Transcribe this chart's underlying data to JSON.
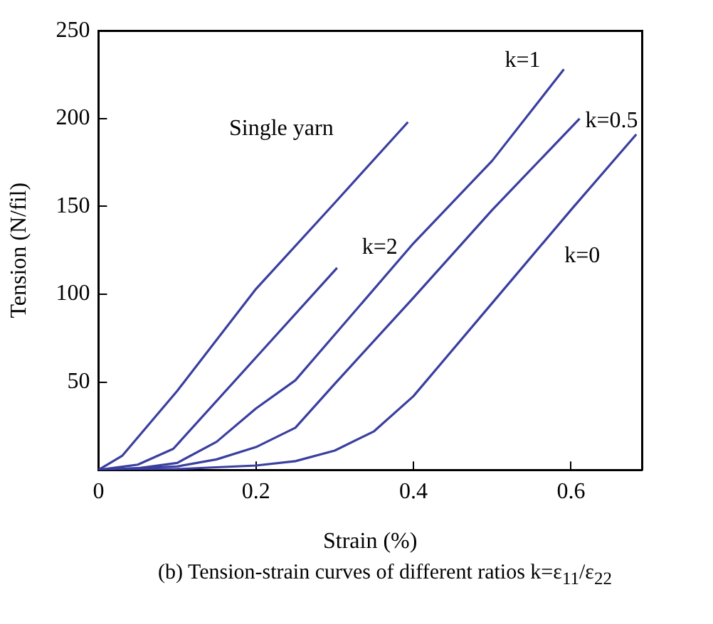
{
  "chart_data": {
    "type": "line",
    "xlabel": "Strain (%)",
    "ylabel": "Tension (N/fil)",
    "xlim": [
      0,
      0.69
    ],
    "xticks": [
      0,
      0.2,
      0.4,
      0.6
    ],
    "ylim": [
      0,
      250
    ],
    "yticks": [
      50,
      100,
      150,
      200,
      250
    ],
    "grid": false,
    "legend": false,
    "marker": "none",
    "line_style": "solid",
    "series": [
      {
        "name": "Single yarn",
        "color": "#3a3fa0",
        "x": [
          0,
          0.03,
          0.1,
          0.2,
          0.3,
          0.393
        ],
        "values": [
          0,
          8,
          45,
          103,
          152,
          198
        ]
      },
      {
        "name": "k=2",
        "color": "#3a3fa0",
        "x": [
          0,
          0.05,
          0.095,
          0.2,
          0.303
        ],
        "values": [
          0,
          3,
          12,
          64,
          115
        ]
      },
      {
        "name": "k=1",
        "color": "#3a3fa0",
        "x": [
          0,
          0.05,
          0.1,
          0.15,
          0.2,
          0.25,
          0.4,
          0.5,
          0.591
        ],
        "values": [
          0,
          1,
          4,
          16,
          35,
          51,
          129,
          176,
          228
        ]
      },
      {
        "name": "k=0.5",
        "color": "#3a3fa0",
        "x": [
          0,
          0.1,
          0.15,
          0.2,
          0.25,
          0.3,
          0.4,
          0.5,
          0.611
        ],
        "values": [
          0,
          2,
          6,
          13,
          24,
          49,
          98,
          148,
          200
        ]
      },
      {
        "name": "k=0",
        "color": "#3a3fa0",
        "x": [
          0,
          0.1,
          0.2,
          0.25,
          0.3,
          0.35,
          0.4,
          0.5,
          0.6,
          0.683
        ],
        "values": [
          0,
          0.5,
          2.5,
          5,
          11,
          22,
          42,
          95,
          148,
          191
        ]
      }
    ],
    "annotations": [
      "(b) Tension-strain curves of different ratios k=ε$_{11}$/ε$_{22}$"
    ]
  }
}
